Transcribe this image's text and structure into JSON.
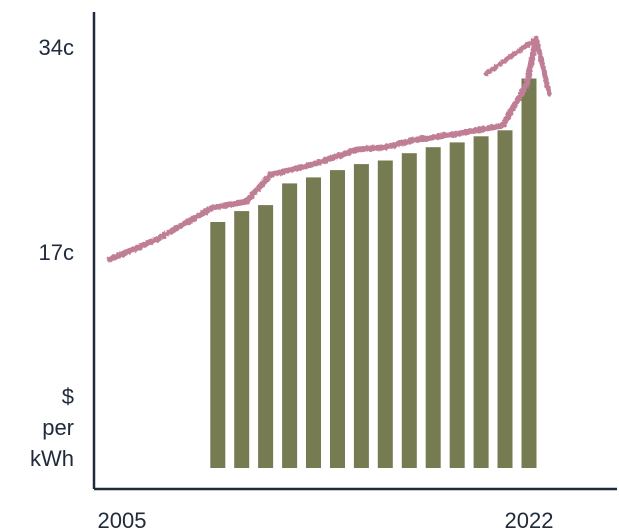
{
  "chart_data": {
    "type": "bar",
    "title": "",
    "xlabel": "",
    "ylabel": "$ per kWh",
    "ylabel_lines": [
      "$",
      "per",
      "kWh"
    ],
    "y_ticks": [
      {
        "value": 17,
        "label": "17c"
      },
      {
        "value": 34,
        "label": "34c"
      }
    ],
    "x_tick_labels": [
      "2005",
      "2022"
    ],
    "ylim": [
      0,
      38
    ],
    "grid": false,
    "colors": {
      "bars": "#767b52",
      "trend_line": "#c07e96",
      "axis": "#1f2a3a"
    },
    "categories": [
      "2009",
      "2010",
      "2011",
      "2012",
      "2013",
      "2014",
      "2015",
      "2016",
      "2017",
      "2018",
      "2019",
      "2020",
      "2021",
      "2022"
    ],
    "values": [
      20.4,
      21.3,
      21.8,
      23.6,
      24.1,
      24.7,
      25.2,
      25.5,
      26.1,
      26.6,
      27.0,
      27.5,
      28.0,
      32.3
    ],
    "trend_line": {
      "description_free": true,
      "points": [
        {
          "x": 2004.5,
          "y": 17.3
        },
        {
          "x": 2006.5,
          "y": 19.0
        },
        {
          "x": 2008.8,
          "y": 21.6
        },
        {
          "x": 2010.2,
          "y": 22.1
        },
        {
          "x": 2011.2,
          "y": 24.3
        },
        {
          "x": 2013.0,
          "y": 25.2
        },
        {
          "x": 2014.8,
          "y": 26.4
        },
        {
          "x": 2016.0,
          "y": 26.6
        },
        {
          "x": 2017.2,
          "y": 27.2
        },
        {
          "x": 2019.0,
          "y": 27.7
        },
        {
          "x": 2020.9,
          "y": 28.4
        },
        {
          "x": 2021.9,
          "y": 31.8
        }
      ],
      "arrow_tip": {
        "x": 2022.3,
        "y": 35.6
      }
    }
  }
}
